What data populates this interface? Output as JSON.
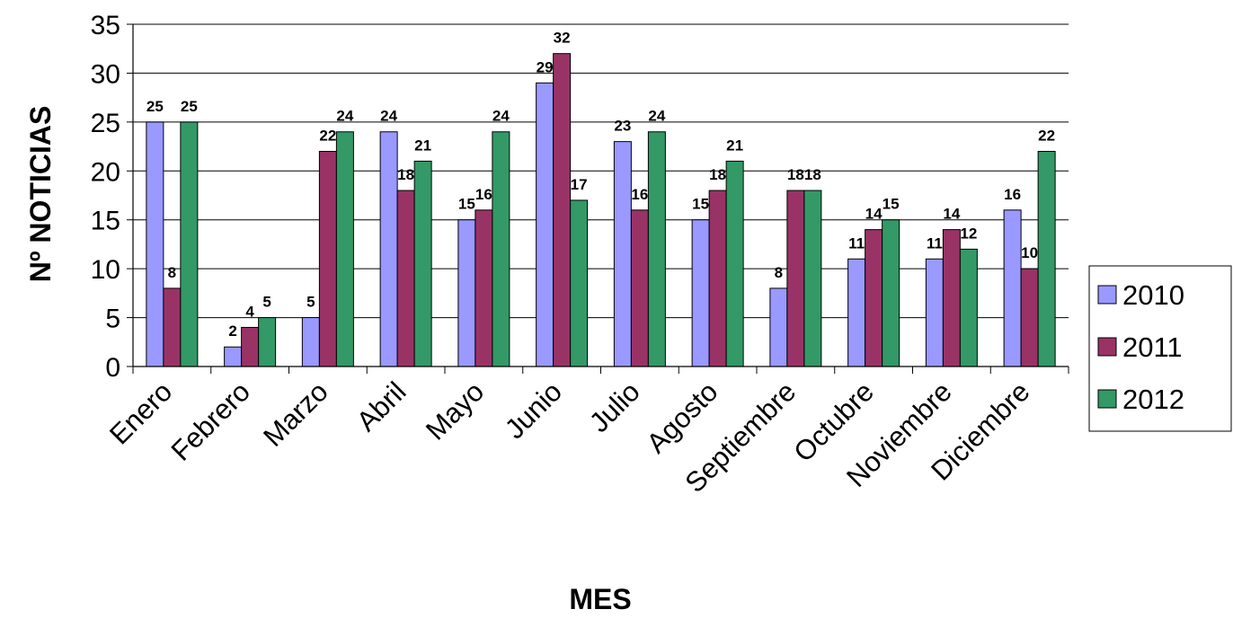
{
  "chart_data": {
    "type": "bar",
    "xlabel": "MES",
    "ylabel": "Nº NOTICIAS",
    "ylim": [
      0,
      35
    ],
    "ytick_step": 5,
    "grid": true,
    "legend_position": "right",
    "categories": [
      "Enero",
      "Febrero",
      "Marzo",
      "Abril",
      "Mayo",
      "Junio",
      "Julio",
      "Agosto",
      "Septiembre",
      "Octubre",
      "Noviembre",
      "Diciembre"
    ],
    "series": [
      {
        "name": "2010",
        "color": "#9999ff",
        "values": [
          25,
          2,
          5,
          24,
          15,
          29,
          23,
          15,
          8,
          11,
          11,
          16
        ]
      },
      {
        "name": "2011",
        "color": "#993366",
        "values": [
          8,
          4,
          22,
          18,
          16,
          32,
          16,
          18,
          18,
          14,
          14,
          10
        ]
      },
      {
        "name": "2012",
        "color": "#339966",
        "values": [
          25,
          5,
          24,
          21,
          24,
          17,
          24,
          21,
          18,
          15,
          12,
          22
        ]
      }
    ]
  }
}
